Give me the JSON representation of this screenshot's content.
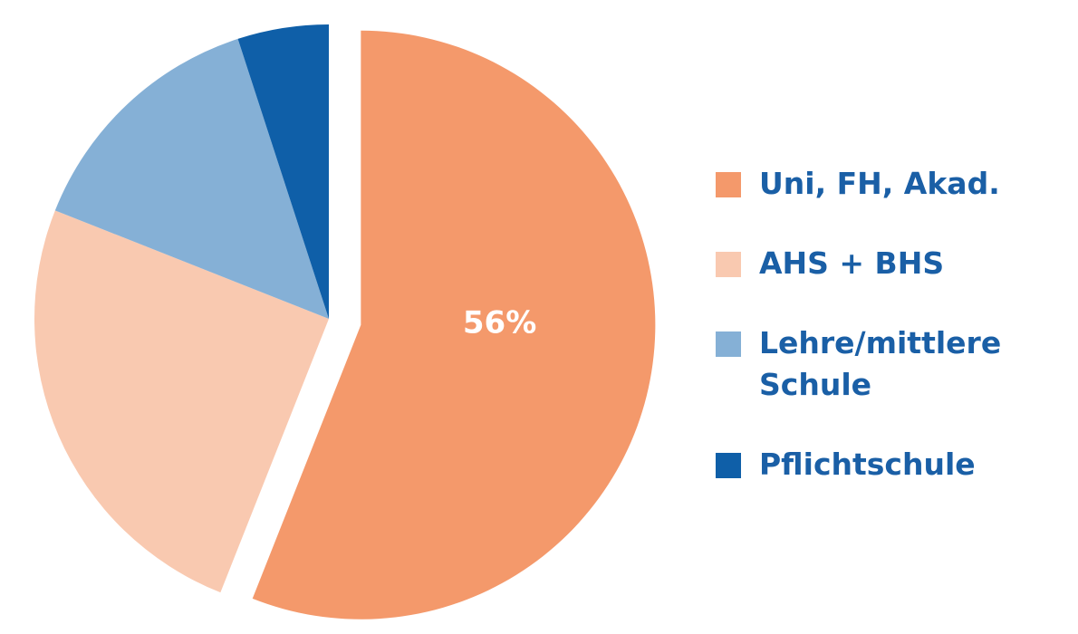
{
  "chart_data": {
    "type": "pie",
    "categories": [
      "Uni, FH, Akad.",
      "AHS + BHS",
      "Lehre/mittlere Schule",
      "Pflichtschule"
    ],
    "values": [
      56,
      25,
      14,
      5
    ],
    "value_labels": [
      "56%",
      null,
      null,
      null
    ],
    "colors": [
      "#f4996b",
      "#f9c9b0",
      "#85b0d6",
      "#0f5fa8"
    ],
    "explode": [
      true,
      false,
      false,
      false
    ],
    "legend": "right"
  }
}
